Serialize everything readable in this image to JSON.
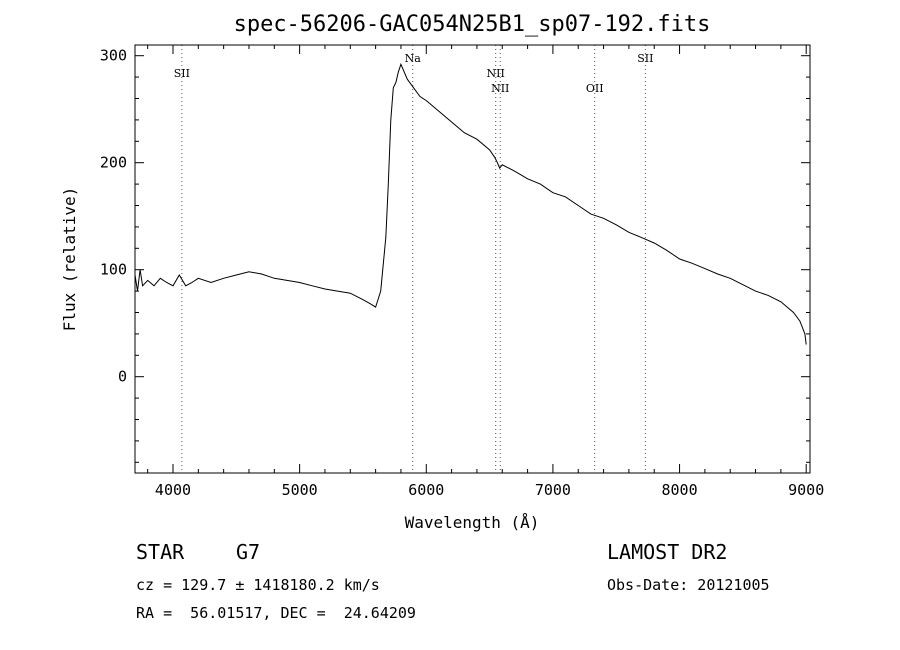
{
  "chart_data": {
    "type": "line",
    "title": "spec-56206-GAC054N25B1_sp07-192.fits",
    "xlabel": "Wavelength (Å)",
    "ylabel": "Flux (relative)",
    "xlim": [
      3700,
      9030
    ],
    "ylim": [
      -90,
      310
    ],
    "xticks": [
      4000,
      5000,
      6000,
      7000,
      8000,
      9000
    ],
    "yticks": [
      0,
      100,
      200,
      300
    ],
    "grid": false,
    "series": [
      {
        "x": [
          3700,
          3720,
          3740,
          3760,
          3800,
          3850,
          3900,
          3950,
          4000,
          4050,
          4100,
          4150,
          4200,
          4300,
          4400,
          4500,
          4600,
          4700,
          4800,
          4900,
          5000,
          5100,
          5200,
          5300,
          5400,
          5500,
          5560,
          5600,
          5640,
          5680,
          5700,
          5720,
          5740,
          5760,
          5780,
          5800,
          5850,
          5900,
          5950,
          6000,
          6100,
          6200,
          6300,
          6400,
          6500,
          6540,
          6562,
          6580,
          6600,
          6700,
          6800,
          6900,
          7000,
          7100,
          7200,
          7300,
          7400,
          7500,
          7600,
          7700,
          7800,
          7900,
          8000,
          8100,
          8200,
          8300,
          8400,
          8500,
          8600,
          8700,
          8800,
          8900,
          8950,
          8990,
          9000
        ],
        "y": [
          95,
          80,
          100,
          85,
          90,
          85,
          92,
          88,
          85,
          95,
          85,
          88,
          92,
          88,
          92,
          95,
          98,
          96,
          92,
          90,
          88,
          85,
          82,
          80,
          78,
          72,
          68,
          65,
          80,
          130,
          180,
          240,
          270,
          275,
          285,
          292,
          278,
          270,
          262,
          258,
          248,
          238,
          228,
          222,
          212,
          205,
          200,
          195,
          198,
          192,
          185,
          180,
          172,
          168,
          160,
          152,
          148,
          142,
          135,
          130,
          125,
          118,
          110,
          106,
          101,
          96,
          92,
          86,
          80,
          76,
          70,
          60,
          52,
          40,
          30
        ]
      }
    ],
    "annotations": [
      {
        "label": "SII",
        "x": 4070,
        "row": 1
      },
      {
        "label": "Na",
        "x": 5893,
        "row": 0
      },
      {
        "label": "NII",
        "x": 6548,
        "row": 1
      },
      {
        "label": "NII",
        "x": 6584,
        "row": 2
      },
      {
        "label": "OII",
        "x": 7330,
        "row": 2
      },
      {
        "label": "SII",
        "x": 7730,
        "row": 0
      }
    ]
  },
  "info": {
    "object_class": "STAR",
    "subclass": "G7",
    "cz": "cz = 129.7 ± 1418180.2 km/s",
    "coords": "RA =  56.01517, DEC =  24.64209",
    "survey": "LAMOST DR2",
    "obs_date": "Obs-Date: 20121005"
  }
}
